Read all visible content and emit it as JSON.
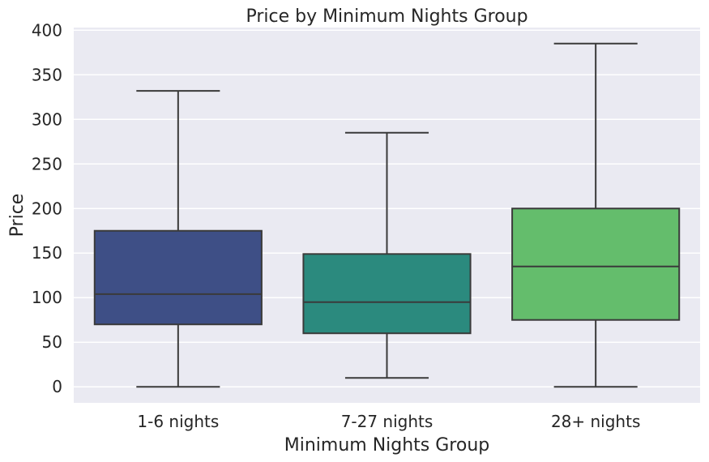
{
  "chart_data": {
    "type": "box",
    "title": "Price by Minimum Nights Group",
    "xlabel": "Minimum Nights Group",
    "ylabel": "Price",
    "ylim": [
      -18,
      403
    ],
    "yticks": [
      0,
      50,
      100,
      150,
      200,
      250,
      300,
      350,
      400
    ],
    "grid": true,
    "categories": [
      "1-6 nights",
      "7-27 nights",
      "28+ nights"
    ],
    "boxes": [
      {
        "category": "1-6 nights",
        "whisker_low": 0,
        "q1": 70,
        "median": 104,
        "q3": 175,
        "whisker_high": 332,
        "color": "#3e4f86"
      },
      {
        "category": "7-27 nights",
        "whisker_low": 10,
        "q1": 60,
        "median": 95,
        "q3": 149,
        "whisker_high": 285,
        "color": "#2b8a7e"
      },
      {
        "category": "28+ nights",
        "whisker_low": 0,
        "q1": 75,
        "median": 135,
        "q3": 200,
        "whisker_high": 385,
        "color": "#64bd6c"
      }
    ]
  },
  "colors": {
    "plot_background": "#eaeaf2",
    "grid": "#ffffff",
    "line": "#3a3a3a",
    "text": "#262626"
  }
}
